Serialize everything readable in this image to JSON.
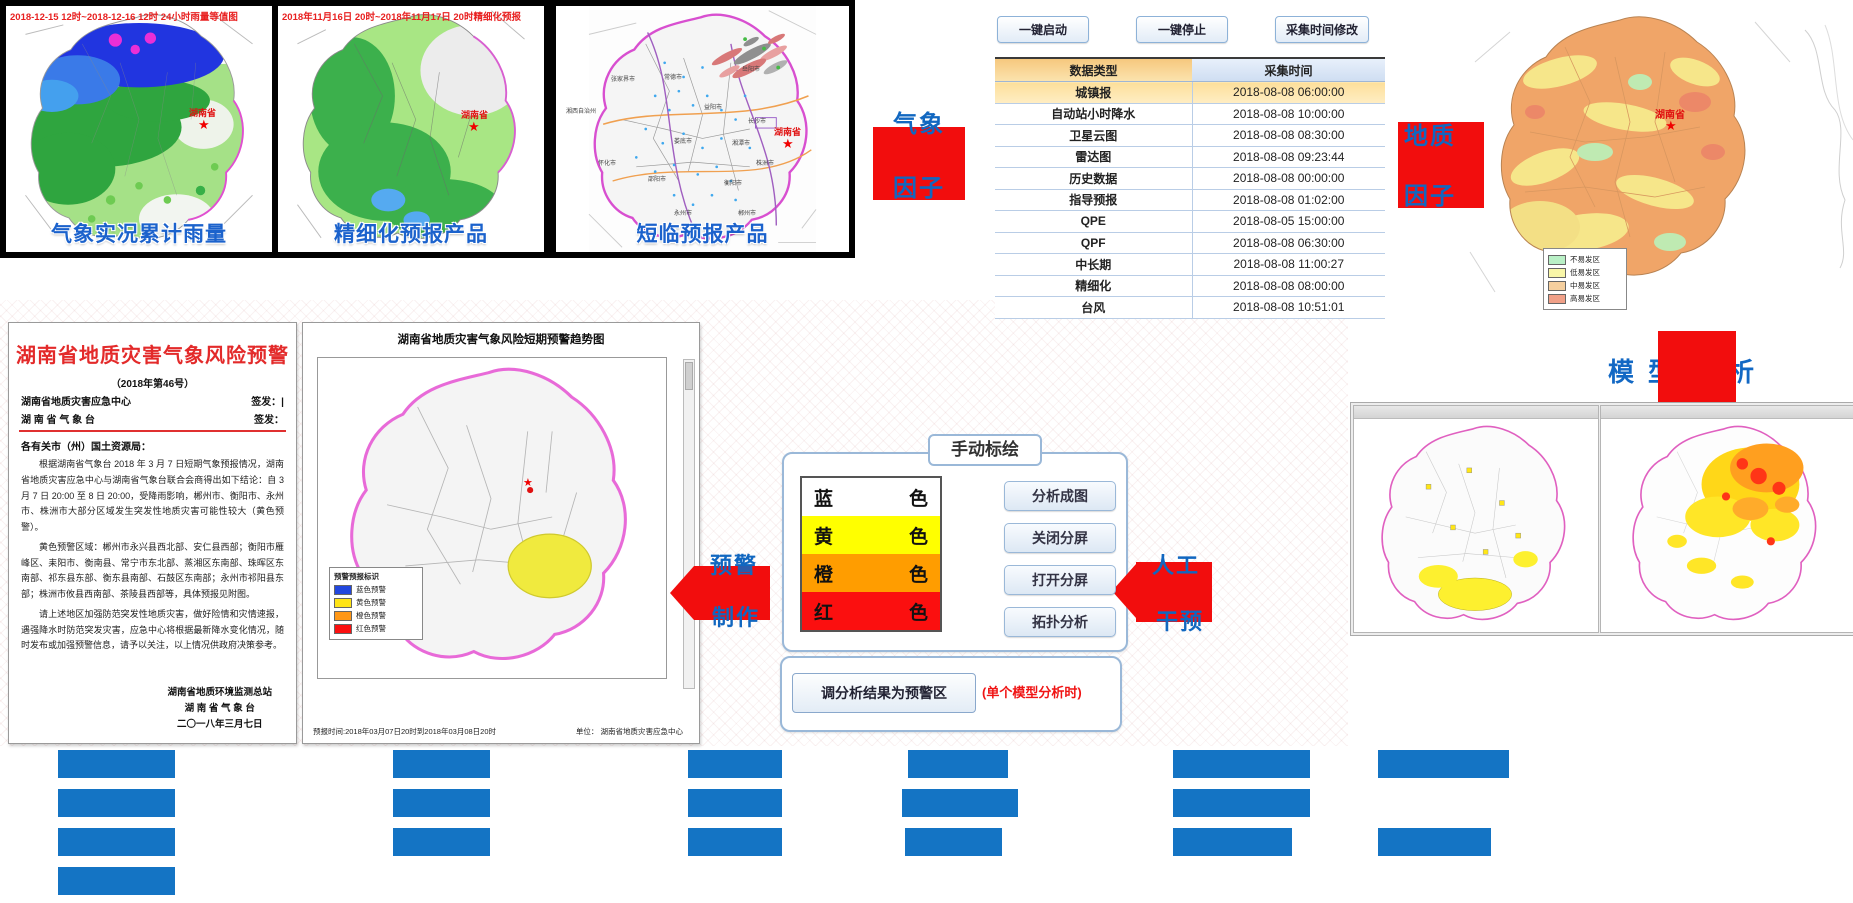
{
  "top_products": {
    "panels": [
      {
        "header": "2018-12-15 12时~2018-12-16 12时 24小时雨量等值图",
        "label": "气象实况累计雨量",
        "province": "湖南省"
      },
      {
        "header": "2018年11月16日 20时~2018年11月17日 20时精细化预报",
        "label": "精细化预报产品",
        "province": "湖南省"
      },
      {
        "header": "",
        "label": "短临预报产品",
        "province": "湖南省",
        "cities": [
          "张家界市",
          "常德市",
          "岳阳市",
          "湘西自治州",
          "益阳市",
          "长沙市",
          "怀化市",
          "娄底市",
          "湘潭市",
          "邵阳市",
          "株洲市",
          "衡阳市",
          "永州市",
          "郴州市"
        ]
      }
    ]
  },
  "collection": {
    "buttons": [
      "一键启动",
      "一键停止",
      "采集时间修改"
    ],
    "table": {
      "headers": [
        "数据类型",
        "采集时间"
      ],
      "rows": [
        [
          "城镇报",
          "2018-08-08 06:00:00"
        ],
        [
          "自动站小时降水",
          "2018-08-08 10:00:00"
        ],
        [
          "卫星云图",
          "2018-08-08 08:30:00"
        ],
        [
          "雷达图",
          "2018-08-08 09:23:44"
        ],
        [
          "历史数据",
          "2018-08-08 00:00:00"
        ],
        [
          "指导预报",
          "2018-08-08 01:02:00"
        ],
        [
          "QPE",
          "2018-08-05 15:00:00"
        ],
        [
          "QPF",
          "2018-08-08 06:30:00"
        ],
        [
          "中长期",
          "2018-08-08 11:00:27"
        ],
        [
          "精细化",
          "2018-08-08 08:00:00"
        ],
        [
          "台风",
          "2018-08-08 10:51:01"
        ]
      ]
    }
  },
  "flow_labels": {
    "factor1": {
      "top": "气象",
      "bottom": "因子"
    },
    "factor2": {
      "top": "地质",
      "bottom": "因子"
    },
    "warning_make": {
      "top": "预警",
      "bottom": "制作"
    },
    "manual_intervene": {
      "top": "人工",
      "bottom": "干预"
    },
    "model_analysis": "模型分析",
    "arrow_color": "#f20d0d",
    "text_color": "#1167c0"
  },
  "susceptibility_map": {
    "province": "湖南省",
    "legend": [
      {
        "label": "不易发区",
        "color": "#b9f0c6"
      },
      {
        "label": "低易发区",
        "color": "#f8f6a8"
      },
      {
        "label": "中易发区",
        "color": "#f5cf9e"
      },
      {
        "label": "高易发区",
        "color": "#f0a088"
      }
    ]
  },
  "warning_doc": {
    "title": "湖南省地质灾害气象风险预警",
    "issue_no": "（2018年第46号）",
    "org1": "湖南省地质灾害应急中心",
    "sign1": "签发：|",
    "org2": "湖 南 省 气 象 台",
    "sign2": "签发：",
    "salutation": "各有关市（州）国土资源局：",
    "para1": "根据湖南省气象台 2018 年 3 月 7 日短期气象预报情况，湖南省地质灾害应急中心与湖南省气象台联合会商得出如下结论：自 3 月 7 日 20:00 至 8 日 20:00，受降雨影响，郴州市、衡阳市、永州市、株洲市大部分区域发生突发性地质灾害可能性较大（黄色预警）。",
    "para2": "黄色预警区域：郴州市永兴县西北部、安仁县西部；衡阳市雁峰区、耒阳市、衡南县、常宁市东北部、蒸湘区东南部、珠晖区东南部、祁东县东部、衡东县南部、石鼓区东南部；永州市祁阳县东部；株洲市攸县西南部、茶陵县西部等，具体预报见附图。",
    "para3": "请上述地区加强防范突发性地质灾害，做好险情和灾情速报，遇强降水时防范突发灾害，应急中心将根据最新降水变化情况，随时发布或加强预警信息，请予以关注，以上情况供政府决策参考。",
    "sig1": "湖南省地质环境监测总站",
    "sig2": "湖 南 省 气 象 台",
    "sig3": "二〇一八年三月七日"
  },
  "trend_map": {
    "title": "湖南省地质灾害气象风险短期预警趋势图",
    "province": "湖南省",
    "legend_title": "预警预报标识",
    "legend": [
      {
        "label": "蓝色预警",
        "color": "#2247de"
      },
      {
        "label": "黄色预警",
        "color": "#ffe416"
      },
      {
        "label": "橙色预警",
        "color": "#ff9716"
      },
      {
        "label": "红色预警",
        "color": "#fb1010"
      }
    ],
    "footer_left": "预报时间:2018年03月07日20时到2018年03月08日20时",
    "footer_right": "单位： 湖南省地质灾害应急中心"
  },
  "manual_panel": {
    "title": "手动标绘",
    "colors": [
      {
        "name": "蓝",
        "suffix": "色",
        "bg": "#ffffff"
      },
      {
        "name": "黄",
        "suffix": "色",
        "bg": "#ffff00"
      },
      {
        "name": "橙",
        "suffix": "色",
        "bg": "#ff9d00"
      },
      {
        "name": "红",
        "suffix": "色",
        "bg": "#fb0f0f"
      }
    ],
    "buttons": [
      "分析成图",
      "关闭分屏",
      "打开分屏",
      "拓扑分析"
    ],
    "result_button": "调分析结果为预警区",
    "result_note": "(单个模型分析时)"
  }
}
